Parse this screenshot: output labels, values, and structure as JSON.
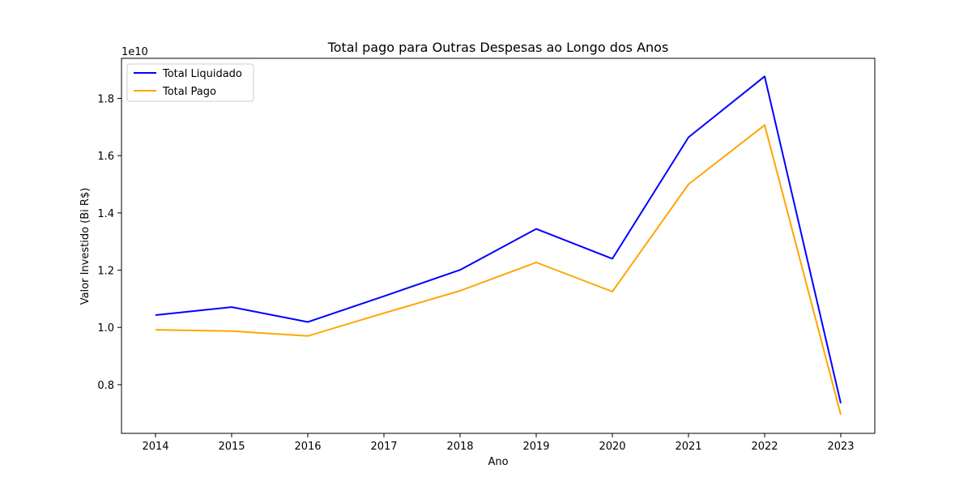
{
  "chart_data": {
    "type": "line",
    "title": "Total pago para Outras Despesas ao Longo dos Anos",
    "xlabel": "Ano",
    "ylabel": "Valor Investido (Bi R$)",
    "offset_label": "1e10",
    "x": [
      "2014",
      "2015",
      "2016",
      "2017",
      "2018",
      "2019",
      "2020",
      "2021",
      "2022",
      "2023"
    ],
    "yticks": [
      "0.8",
      "1.0",
      "1.2",
      "1.4",
      "1.6",
      "1.8"
    ],
    "ylim": [
      0.63,
      1.94
    ],
    "legend_position": "top-left",
    "series": [
      {
        "name": "Total Liquidado",
        "color": "#0000ff",
        "values": [
          1.043,
          1.071,
          1.019,
          1.109,
          1.201,
          1.344,
          1.24,
          1.664,
          1.877,
          0.735
        ]
      },
      {
        "name": "Total Pago",
        "color": "#ffa500",
        "values": [
          0.992,
          0.987,
          0.97,
          1.05,
          1.128,
          1.227,
          1.125,
          1.5,
          1.707,
          0.695
        ]
      }
    ]
  }
}
